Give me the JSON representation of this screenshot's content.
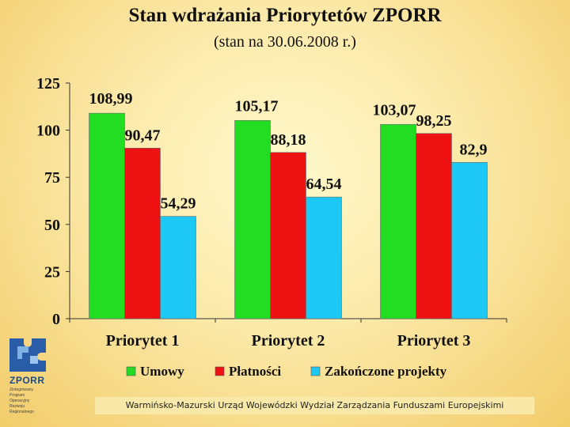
{
  "chart_data": {
    "type": "bar",
    "title": "Stan wdrażania Priorytetów ZPORR",
    "subtitle": "(stan na 30.06.2008 r.)",
    "categories": [
      "Priorytet 1",
      "Priorytet 2",
      "Priorytet 3"
    ],
    "ylim": [
      0,
      125
    ],
    "yticks": [
      0,
      25,
      50,
      75,
      100,
      125
    ],
    "grid": false,
    "legend_position": "bottom",
    "series": [
      {
        "name": "Umowy",
        "color": "#22dd22",
        "values": [
          108.99,
          105.17,
          103.07
        ],
        "labels": [
          "108,99",
          "105,17",
          "103,07"
        ]
      },
      {
        "name": "Płatności",
        "color": "#ee1111",
        "values": [
          90.47,
          88.18,
          98.25
        ],
        "labels": [
          "90,47",
          "88,18",
          "98,25"
        ]
      },
      {
        "name": "Zakończone projekty",
        "color": "#1ec8f5",
        "values": [
          54.29,
          64.54,
          82.9
        ],
        "labels": [
          "54,29",
          "64,54",
          "82,9"
        ]
      }
    ]
  },
  "logo": {
    "name": "ZPORR",
    "lines": [
      "Zintegrowany",
      "Program",
      "Operacyjny",
      "Rozwoju",
      "Regionalnego"
    ]
  },
  "footer": {
    "text": "Warmińsko-Mazurski Urząd Wojewódzki Wydział Zarządzania Funduszami Europejskimi"
  }
}
